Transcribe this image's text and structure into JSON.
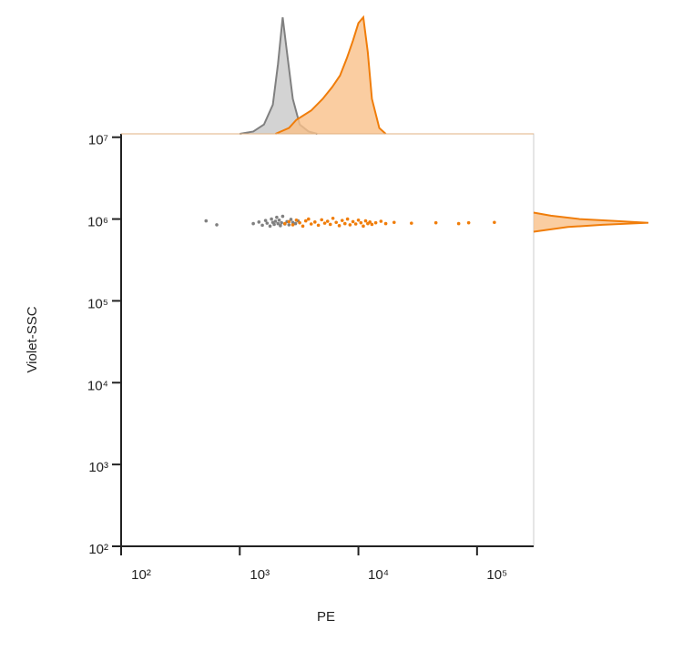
{
  "chart_data": {
    "type": "scatter",
    "xlabel": "PE",
    "ylabel": "Violet-SSC",
    "xscale": "log",
    "yscale": "log",
    "xlim": [
      100,
      300000
    ],
    "ylim": [
      100,
      11000000
    ],
    "xticks": [
      {
        "value": 100,
        "label": "10²"
      },
      {
        "value": 1000,
        "label": "10³"
      },
      {
        "value": 10000,
        "label": "10⁴"
      },
      {
        "value": 100000,
        "label": "10⁵"
      }
    ],
    "yticks": [
      {
        "value": 100,
        "label": "10²"
      },
      {
        "value": 1000,
        "label": "10³"
      },
      {
        "value": 10000,
        "label": "10⁴"
      },
      {
        "value": 100000,
        "label": "10⁵"
      },
      {
        "value": 1000000,
        "label": "10⁶"
      },
      {
        "value": 10000000,
        "label": "10⁷"
      }
    ],
    "series": [
      {
        "color": "#808080",
        "x": [
          520,
          640,
          1300,
          1450,
          1550,
          1650,
          1700,
          1800,
          1850,
          1900,
          1950,
          2000,
          2050,
          2100,
          2150,
          2200,
          2250,
          2300,
          2400,
          2500,
          2600,
          2700,
          2800,
          2950,
          3100
        ],
        "y": [
          950000,
          850000,
          880000,
          920000,
          840000,
          960000,
          890000,
          820000,
          1000000,
          910000,
          860000,
          940000,
          1050000,
          880000,
          970000,
          830000,
          900000,
          1080000,
          870000,
          930000,
          850000,
          990000,
          910000,
          880000,
          950000
        ]
      },
      {
        "color": "#f07d0a",
        "x": [
          2400,
          2600,
          2800,
          3000,
          3200,
          3400,
          3600,
          3800,
          4000,
          4300,
          4600,
          4900,
          5200,
          5500,
          5800,
          6100,
          6500,
          6900,
          7300,
          7700,
          8100,
          8500,
          9000,
          9500,
          10000,
          10500,
          11000,
          11500,
          12000,
          12500,
          13000,
          14000,
          15500,
          17000,
          20000,
          28000,
          45000,
          70000,
          85000,
          140000
        ],
        "y": [
          880000,
          930000,
          850000,
          970000,
          900000,
          820000,
          950000,
          1000000,
          870000,
          920000,
          840000,
          980000,
          890000,
          940000,
          860000,
          1020000,
          910000,
          830000,
          960000,
          880000,
          1000000,
          850000,
          930000,
          870000,
          970000,
          900000,
          820000,
          950000,
          880000,
          920000,
          860000,
          900000,
          940000,
          880000,
          910000,
          890000,
          900000,
          880000,
          900000,
          910000
        ]
      }
    ],
    "x_histogram": {
      "ylim": [
        0,
        100
      ],
      "series": [
        {
          "color": "#808080",
          "fill": "#c8c8c8",
          "x": [
            1000,
            1300,
            1600,
            1900,
            2100,
            2300,
            2500,
            2800,
            3200,
            3800,
            4500
          ],
          "y": [
            0,
            2,
            8,
            25,
            60,
            100,
            70,
            30,
            8,
            2,
            0
          ]
        },
        {
          "color": "#f07d0a",
          "fill": "#f9c08a",
          "x": [
            2000,
            2600,
            3000,
            4000,
            5000,
            6000,
            7000,
            8000,
            9000,
            10000,
            11000,
            12000,
            13000,
            15000,
            17000
          ],
          "y": [
            0,
            5,
            12,
            20,
            30,
            40,
            50,
            65,
            80,
            95,
            100,
            70,
            30,
            5,
            0
          ]
        }
      ]
    },
    "y_histogram": {
      "xlim": [
        0,
        100
      ],
      "series": [
        {
          "color": "#f07d0a",
          "fill": "#f9c08a",
          "y": [
            700000,
            800000,
            850000,
            900000,
            950000,
            1000000,
            1100000,
            1200000
          ],
          "x": [
            0,
            30,
            60,
            100,
            70,
            40,
            15,
            0
          ]
        }
      ]
    }
  }
}
